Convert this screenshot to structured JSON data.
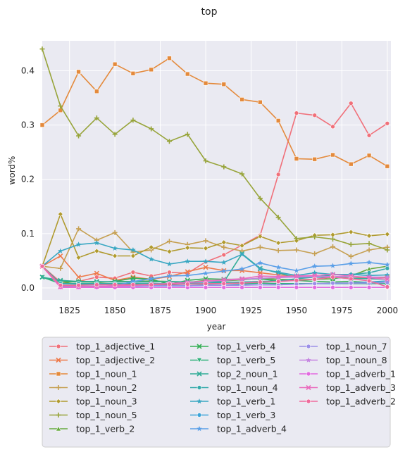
{
  "chart_data": {
    "type": "line",
    "title": "top",
    "xlabel": "year",
    "ylabel": "word%",
    "xlim": [
      1810,
      2002
    ],
    "ylim": [
      -0.022,
      0.455
    ],
    "xticks": [
      1825,
      1850,
      1875,
      1900,
      1925,
      1950,
      1975,
      2000
    ],
    "yticks": [
      0.0,
      0.1,
      0.2,
      0.3,
      0.4
    ],
    "ytick_labels": [
      "0.0",
      "0.1",
      "0.2",
      "0.3",
      "0.4"
    ],
    "grid": true,
    "legend_position": "bottom",
    "x": [
      1810,
      1820,
      1830,
      1840,
      1850,
      1860,
      1870,
      1880,
      1890,
      1900,
      1910,
      1920,
      1930,
      1940,
      1950,
      1960,
      1970,
      1980,
      1990,
      2000
    ],
    "series": [
      {
        "name": "top_1_adjective_1",
        "color": "#f0707a",
        "marker": "circle",
        "values": [
          0.04,
          0.011,
          0.012,
          0.02,
          0.018,
          0.029,
          0.022,
          0.029,
          0.027,
          0.048,
          0.061,
          0.079,
          0.097,
          0.209,
          0.322,
          0.318,
          0.297,
          0.34,
          0.281,
          0.303
        ]
      },
      {
        "name": "top_1_adjective_2",
        "color": "#ee7a4b",
        "marker": "x",
        "values": [
          0.04,
          0.059,
          0.02,
          0.027,
          0.014,
          0.02,
          0.016,
          0.021,
          0.03,
          0.038,
          0.032,
          0.032,
          0.028,
          0.024,
          0.022,
          0.02,
          0.02,
          0.018,
          0.019,
          0.019
        ]
      },
      {
        "name": "top_1_noun_1",
        "color": "#e48a3c",
        "marker": "square",
        "values": [
          0.3,
          0.327,
          0.398,
          0.362,
          0.412,
          0.395,
          0.402,
          0.423,
          0.394,
          0.377,
          0.375,
          0.347,
          0.342,
          0.308,
          0.238,
          0.237,
          0.245,
          0.228,
          0.244,
          0.224
        ]
      },
      {
        "name": "top_1_noun_2",
        "color": "#c6a052",
        "marker": "plus",
        "values": [
          0.04,
          0.036,
          0.109,
          0.088,
          0.102,
          0.066,
          0.07,
          0.086,
          0.08,
          0.087,
          0.075,
          0.068,
          0.075,
          0.069,
          0.07,
          0.063,
          0.076,
          0.058,
          0.07,
          0.075
        ]
      },
      {
        "name": "top_1_noun_3",
        "color": "#b09a2e",
        "marker": "diamond",
        "values": [
          0.04,
          0.136,
          0.056,
          0.068,
          0.059,
          0.059,
          0.075,
          0.067,
          0.074,
          0.073,
          0.084,
          0.078,
          0.095,
          0.083,
          0.087,
          0.097,
          0.098,
          0.103,
          0.096,
          0.099
        ]
      },
      {
        "name": "top_1_noun_5",
        "color": "#97a43a",
        "marker": "plus",
        "values": [
          0.44,
          0.335,
          0.28,
          0.313,
          0.283,
          0.309,
          0.293,
          0.27,
          0.283,
          0.234,
          0.223,
          0.21,
          0.165,
          0.13,
          0.091,
          0.094,
          0.09,
          0.08,
          0.082,
          0.07
        ]
      },
      {
        "name": "top_1_verb_2",
        "color": "#66aa3f",
        "marker": "triangle-up",
        "values": [
          0.04,
          0.008,
          0.013,
          0.01,
          0.012,
          0.012,
          0.013,
          0.012,
          0.01,
          0.014,
          0.013,
          0.015,
          0.018,
          0.016,
          0.015,
          0.016,
          0.017,
          0.022,
          0.035,
          0.04
        ]
      },
      {
        "name": "top_1_verb_4",
        "color": "#34af55",
        "marker": "x",
        "values": [
          0.02,
          0.012,
          0.011,
          0.011,
          0.012,
          0.018,
          0.016,
          0.007,
          0.014,
          0.017,
          0.016,
          0.016,
          0.017,
          0.013,
          0.014,
          0.012,
          0.011,
          0.012,
          0.01,
          0.01
        ]
      },
      {
        "name": "top_1_verb_5",
        "color": "#2fb07a",
        "marker": "triangle-down",
        "values": [
          0.02,
          0.008,
          0.007,
          0.007,
          0.007,
          0.007,
          0.006,
          0.006,
          0.007,
          0.007,
          0.008,
          0.008,
          0.009,
          0.008,
          0.008,
          0.008,
          0.008,
          0.008,
          0.008,
          0.008
        ]
      },
      {
        "name": "top_2_noun_1",
        "color": "#32ad97",
        "marker": "x",
        "values": [
          0.02,
          0.014,
          0.012,
          0.012,
          0.011,
          0.012,
          0.011,
          0.012,
          0.011,
          0.012,
          0.011,
          0.063,
          0.036,
          0.028,
          0.019,
          0.02,
          0.019,
          0.018,
          0.017,
          0.016
        ]
      },
      {
        "name": "top_1_noun_4",
        "color": "#35aaab",
        "marker": "circle",
        "values": [
          0.04,
          0.008,
          0.008,
          0.008,
          0.008,
          0.009,
          0.008,
          0.008,
          0.009,
          0.009,
          0.01,
          0.011,
          0.012,
          0.013,
          0.017,
          0.02,
          0.024,
          0.025,
          0.028,
          0.036
        ]
      },
      {
        "name": "top_1_verb_1",
        "color": "#38a7c2",
        "marker": "star",
        "values": [
          0.04,
          0.068,
          0.08,
          0.083,
          0.073,
          0.07,
          0.053,
          0.044,
          0.049,
          0.049,
          0.047,
          0.062,
          0.035,
          0.029,
          0.023,
          0.028,
          0.025,
          0.025,
          0.023,
          0.024
        ]
      },
      {
        "name": "top_1_verb_3",
        "color": "#3ba3d8",
        "marker": "circle",
        "values": [
          0.04,
          0.002,
          0.003,
          0.003,
          0.004,
          0.004,
          0.004,
          0.004,
          0.004,
          0.005,
          0.005,
          0.006,
          0.006,
          0.006,
          0.007,
          0.008,
          0.008,
          0.009,
          0.011,
          0.013
        ]
      },
      {
        "name": "top_1_adverb_4",
        "color": "#5a9fe8",
        "marker": "star",
        "values": [
          0.04,
          0.003,
          0.003,
          0.003,
          0.004,
          0.012,
          0.017,
          0.022,
          0.023,
          0.027,
          0.031,
          0.035,
          0.046,
          0.038,
          0.032,
          0.04,
          0.041,
          0.045,
          0.047,
          0.043
        ]
      },
      {
        "name": "top_1_noun_7",
        "color": "#9b8fe8",
        "marker": "circle",
        "values": [
          0.04,
          0.002,
          0.003,
          0.003,
          0.003,
          0.003,
          0.004,
          0.004,
          0.004,
          0.005,
          0.005,
          0.005,
          0.006,
          0.006,
          0.007,
          0.008,
          0.009,
          0.009,
          0.009,
          0.01
        ]
      },
      {
        "name": "top_1_noun_8",
        "color": "#c584e0",
        "marker": "star",
        "values": [
          0.04,
          0.002,
          0.002,
          0.003,
          0.003,
          0.004,
          0.006,
          0.008,
          0.01,
          0.012,
          0.014,
          0.016,
          0.018,
          0.019,
          0.02,
          0.021,
          0.021,
          0.021,
          0.02,
          0.02
        ]
      },
      {
        "name": "top_1_adverb_1",
        "color": "#e26ae0",
        "marker": "circle",
        "values": [
          0.04,
          0.001,
          0.001,
          0.001,
          0.001,
          0.001,
          0.001,
          0.001,
          0.001,
          0.001,
          0.001,
          0.001,
          0.001,
          0.001,
          0.001,
          0.001,
          0.001,
          0.001,
          0.001,
          0.001
        ]
      },
      {
        "name": "top_1_adverb_3",
        "color": "#ea6cbe",
        "marker": "x",
        "values": [
          0.04,
          0.002,
          0.002,
          0.003,
          0.004,
          0.005,
          0.007,
          0.008,
          0.01,
          0.013,
          0.015,
          0.017,
          0.022,
          0.021,
          0.022,
          0.023,
          0.025,
          0.022,
          0.019,
          0.016
        ]
      },
      {
        "name": "top_1_adverb_2",
        "color": "#ef6b9c",
        "marker": "circle",
        "values": [
          0.04,
          0.005,
          0.005,
          0.006,
          0.006,
          0.006,
          0.006,
          0.007,
          0.007,
          0.008,
          0.008,
          0.009,
          0.011,
          0.012,
          0.014,
          0.016,
          0.02,
          0.017,
          0.013,
          0.002
        ]
      }
    ]
  }
}
